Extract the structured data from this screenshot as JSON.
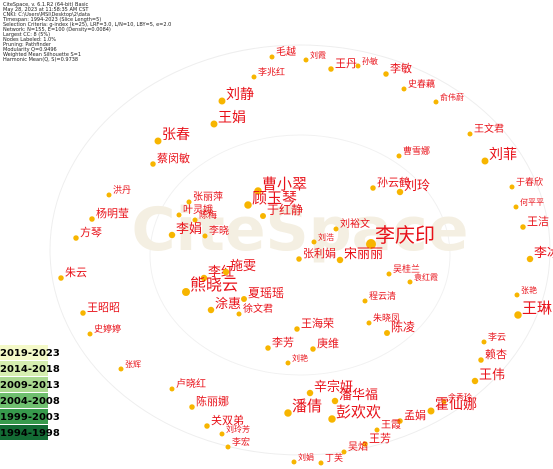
{
  "header": {
    "lines": [
      "CiteSpace, v. 6.1.R2 (64-bit) Basic",
      "May 28, 2023 at 11:58:35 AM CST",
      "CNKI: C:\\Users\\MSI\\Desktop\\2\\data",
      "Timespan: 1994-2023 (Slice Length=5)",
      "Selection Criteria: g-index (k=25), LRF=3.0, L/N=10, LBY=5, e=2.0",
      "Network: N=155, E=100 (Density=0.0084)",
      "Largest CC: 8 (5%)",
      "Nodes Labeled: 1.0%",
      "Pruning: Pathfinder",
      "Modularity Q=0.9496",
      "Weighted Mean Silhouette S=1",
      "Harmonic Mean(Q, S)=0.9738"
    ]
  },
  "watermark": "CiteSpace",
  "legend": {
    "items": [
      {
        "label": "2019-2023",
        "color": "#f4f9c8"
      },
      {
        "label": "2014-2018",
        "color": "#d6eeb0"
      },
      {
        "label": "2009-2013",
        "color": "#a9d88f"
      },
      {
        "label": "2004-2008",
        "color": "#6fbf6f"
      },
      {
        "label": "1999-2003",
        "color": "#379a4c"
      },
      {
        "label": "1994-1998",
        "color": "#136b34"
      }
    ]
  },
  "nodes": [
    "毛越",
    "刘霞",
    "孙敏",
    "王丹",
    "李敏",
    "李兆红",
    "史春藕",
    "俞伟蔚",
    "刘静",
    "王娟",
    "王文君",
    "张春",
    "刘菲",
    "曹雪娜",
    "蔡闵敏",
    "孙云鹤",
    "刘玲",
    "于春欣",
    "洪丹",
    "曹小翠",
    "张丽萍",
    "顾玉琴",
    "何平平",
    "杨明莹",
    "叶灵娥",
    "于红静",
    "陈梅",
    "王洁",
    "刘裕文",
    "方琴",
    "李娟",
    "李晓",
    "刘浩",
    "李庆印",
    "张利娟",
    "宋丽丽",
    "李冰",
    "朱云",
    "李红",
    "施雯",
    "吴桂兰",
    "熊晓云",
    "袁红霞",
    "夏瑶瑶",
    "程云清",
    "张艳",
    "王昭昭",
    "王琳",
    "涂惠",
    "徐文君",
    "朱晓凤",
    "王海荣",
    "陈凌",
    "史婷婷",
    "李芳",
    "庚维",
    "李云",
    "刘艳",
    "赖杏",
    "张辉",
    "辛宗妍",
    "王伟",
    "卢晓红",
    "潘华福",
    "余秀玲",
    "陈丽娜",
    "潘倩",
    "彭欢欢",
    "霍仙娜",
    "孟娟",
    "关双弟",
    "王霞",
    "刘玲芳",
    "王芳",
    "李宏",
    "吴焰",
    "刘娟",
    "丁芙"
  ]
}
